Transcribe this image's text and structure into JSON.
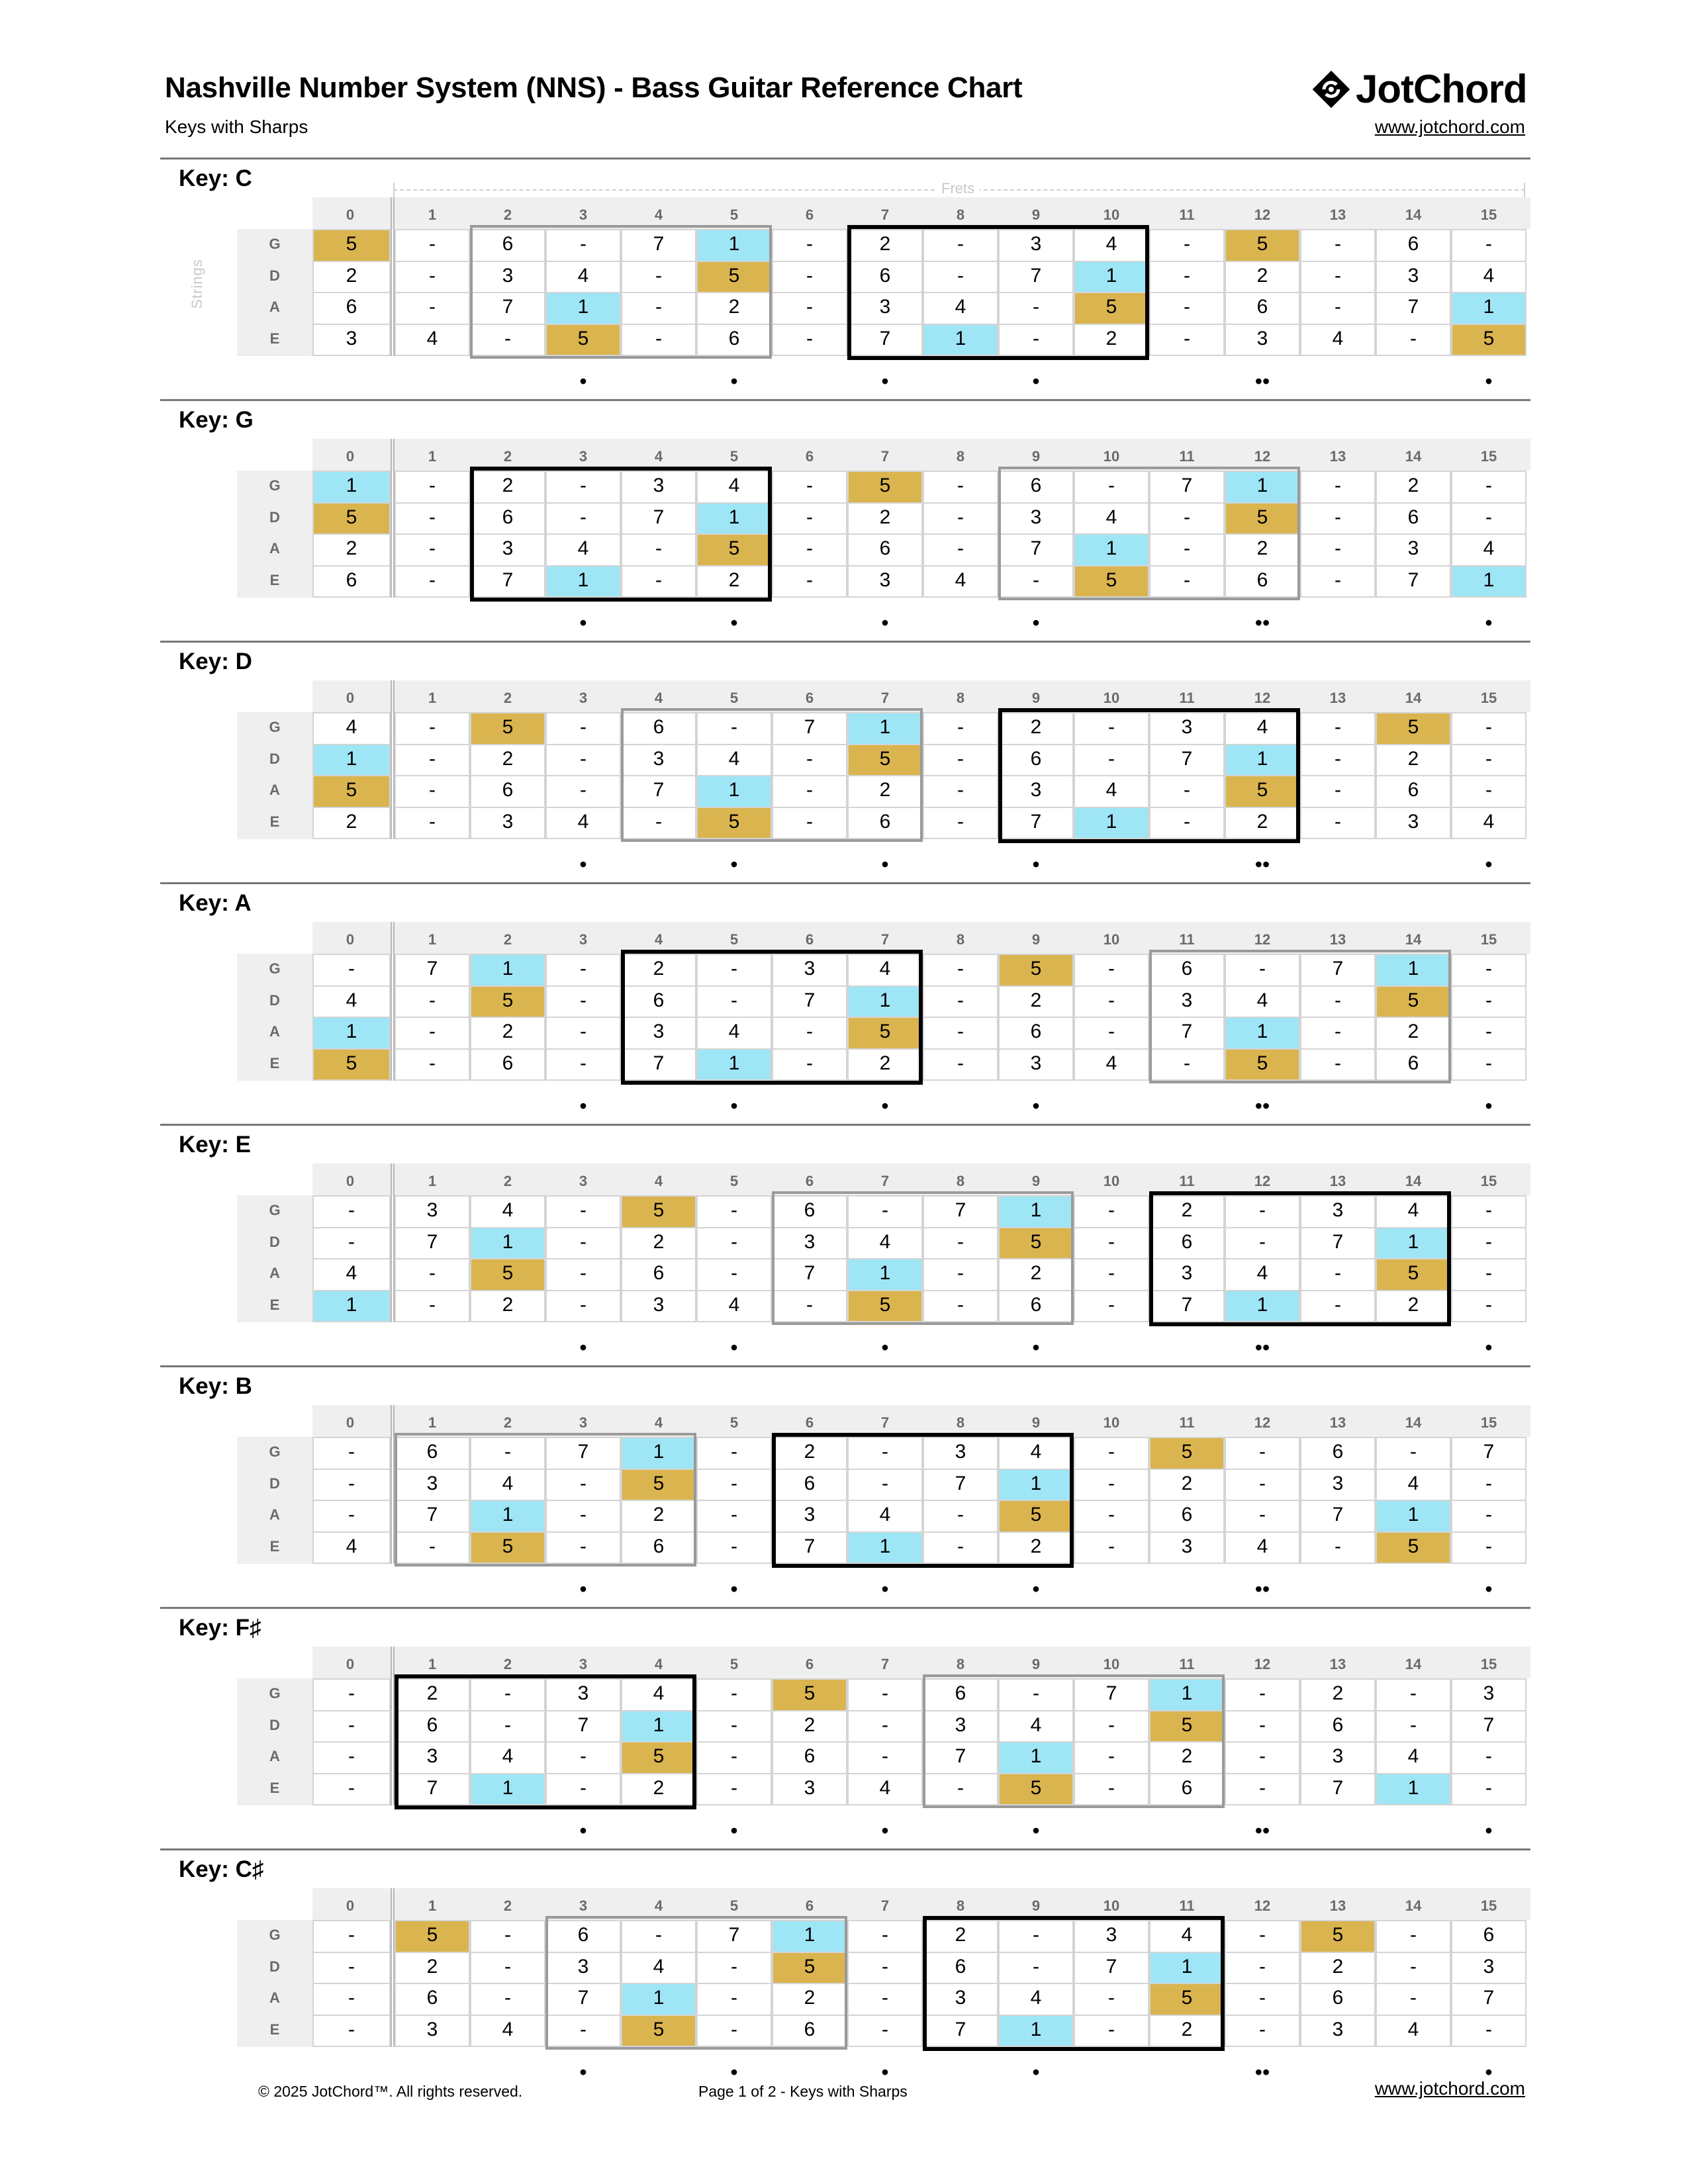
{
  "header": {
    "title": "Nashville Number System (NNS) - Bass Guitar Reference Chart",
    "subtitle": "Keys with Sharps",
    "logo_text": "JotChord",
    "site_link": "www.jotchord.com"
  },
  "axis_labels": {
    "frets": "Frets",
    "strings": "Strings"
  },
  "frets": [
    "0",
    "1",
    "2",
    "3",
    "4",
    "5",
    "6",
    "7",
    "8",
    "9",
    "10",
    "11",
    "12",
    "13",
    "14",
    "15"
  ],
  "strings": [
    "G",
    "D",
    "A",
    "E"
  ],
  "fret_markers": {
    "3": "•",
    "5": "•",
    "7": "•",
    "9": "•",
    "12": "••",
    "15": "•"
  },
  "colors": {
    "root_1": "#9ee6f6",
    "fifth_5": "#dab44e",
    "header_bg": "#efefef",
    "primary_box": "#000000",
    "secondary_box": "#9a9a9a"
  },
  "keys": [
    {
      "label": "Key:",
      "name": "C",
      "rows": [
        [
          "5",
          "-",
          "6",
          "-",
          "7",
          "1",
          "-",
          "2",
          "-",
          "3",
          "4",
          "-",
          "5",
          "-",
          "6",
          "-"
        ],
        [
          "2",
          "-",
          "3",
          "4",
          "-",
          "5",
          "-",
          "6",
          "-",
          "7",
          "1",
          "-",
          "2",
          "-",
          "3",
          "4"
        ],
        [
          "6",
          "-",
          "7",
          "1",
          "-",
          "2",
          "-",
          "3",
          "4",
          "-",
          "5",
          "-",
          "6",
          "-",
          "7",
          "1"
        ],
        [
          "3",
          "4",
          "-",
          "5",
          "-",
          "6",
          "-",
          "7",
          "1",
          "-",
          "2",
          "-",
          "3",
          "4",
          "-",
          "5"
        ]
      ],
      "primary_box": [
        7,
        10
      ],
      "secondary_box": [
        2,
        5
      ]
    },
    {
      "label": "Key:",
      "name": "G",
      "rows": [
        [
          "1",
          "-",
          "2",
          "-",
          "3",
          "4",
          "-",
          "5",
          "-",
          "6",
          "-",
          "7",
          "1",
          "-",
          "2",
          "-"
        ],
        [
          "5",
          "-",
          "6",
          "-",
          "7",
          "1",
          "-",
          "2",
          "-",
          "3",
          "4",
          "-",
          "5",
          "-",
          "6",
          "-"
        ],
        [
          "2",
          "-",
          "3",
          "4",
          "-",
          "5",
          "-",
          "6",
          "-",
          "7",
          "1",
          "-",
          "2",
          "-",
          "3",
          "4"
        ],
        [
          "6",
          "-",
          "7",
          "1",
          "-",
          "2",
          "-",
          "3",
          "4",
          "-",
          "5",
          "-",
          "6",
          "-",
          "7",
          "1"
        ]
      ],
      "primary_box": [
        2,
        5
      ],
      "secondary_box": [
        9,
        12
      ]
    },
    {
      "label": "Key:",
      "name": "D",
      "rows": [
        [
          "4",
          "-",
          "5",
          "-",
          "6",
          "-",
          "7",
          "1",
          "-",
          "2",
          "-",
          "3",
          "4",
          "-",
          "5",
          "-"
        ],
        [
          "1",
          "-",
          "2",
          "-",
          "3",
          "4",
          "-",
          "5",
          "-",
          "6",
          "-",
          "7",
          "1",
          "-",
          "2",
          "-"
        ],
        [
          "5",
          "-",
          "6",
          "-",
          "7",
          "1",
          "-",
          "2",
          "-",
          "3",
          "4",
          "-",
          "5",
          "-",
          "6",
          "-"
        ],
        [
          "2",
          "-",
          "3",
          "4",
          "-",
          "5",
          "-",
          "6",
          "-",
          "7",
          "1",
          "-",
          "2",
          "-",
          "3",
          "4"
        ]
      ],
      "primary_box": [
        9,
        12
      ],
      "secondary_box": [
        4,
        7
      ]
    },
    {
      "label": "Key:",
      "name": "A",
      "rows": [
        [
          "-",
          "7",
          "1",
          "-",
          "2",
          "-",
          "3",
          "4",
          "-",
          "5",
          "-",
          "6",
          "-",
          "7",
          "1",
          "-"
        ],
        [
          "4",
          "-",
          "5",
          "-",
          "6",
          "-",
          "7",
          "1",
          "-",
          "2",
          "-",
          "3",
          "4",
          "-",
          "5",
          "-"
        ],
        [
          "1",
          "-",
          "2",
          "-",
          "3",
          "4",
          "-",
          "5",
          "-",
          "6",
          "-",
          "7",
          "1",
          "-",
          "2",
          "-"
        ],
        [
          "5",
          "-",
          "6",
          "-",
          "7",
          "1",
          "-",
          "2",
          "-",
          "3",
          "4",
          "-",
          "5",
          "-",
          "6",
          "-"
        ]
      ],
      "primary_box": [
        4,
        7
      ],
      "secondary_box": [
        11,
        14
      ]
    },
    {
      "label": "Key:",
      "name": "E",
      "rows": [
        [
          "-",
          "3",
          "4",
          "-",
          "5",
          "-",
          "6",
          "-",
          "7",
          "1",
          "-",
          "2",
          "-",
          "3",
          "4",
          "-"
        ],
        [
          "-",
          "7",
          "1",
          "-",
          "2",
          "-",
          "3",
          "4",
          "-",
          "5",
          "-",
          "6",
          "-",
          "7",
          "1",
          "-"
        ],
        [
          "4",
          "-",
          "5",
          "-",
          "6",
          "-",
          "7",
          "1",
          "-",
          "2",
          "-",
          "3",
          "4",
          "-",
          "5",
          "-"
        ],
        [
          "1",
          "-",
          "2",
          "-",
          "3",
          "4",
          "-",
          "5",
          "-",
          "6",
          "-",
          "7",
          "1",
          "-",
          "2",
          "-"
        ]
      ],
      "primary_box": [
        11,
        14
      ],
      "secondary_box": [
        6,
        9
      ]
    },
    {
      "label": "Key:",
      "name": "B",
      "rows": [
        [
          "-",
          "6",
          "-",
          "7",
          "1",
          "-",
          "2",
          "-",
          "3",
          "4",
          "-",
          "5",
          "-",
          "6",
          "-",
          "7"
        ],
        [
          "-",
          "3",
          "4",
          "-",
          "5",
          "-",
          "6",
          "-",
          "7",
          "1",
          "-",
          "2",
          "-",
          "3",
          "4",
          "-"
        ],
        [
          "-",
          "7",
          "1",
          "-",
          "2",
          "-",
          "3",
          "4",
          "-",
          "5",
          "-",
          "6",
          "-",
          "7",
          "1",
          "-"
        ],
        [
          "4",
          "-",
          "5",
          "-",
          "6",
          "-",
          "7",
          "1",
          "-",
          "2",
          "-",
          "3",
          "4",
          "-",
          "5",
          "-"
        ]
      ],
      "primary_box": [
        6,
        9
      ],
      "secondary_box": [
        1,
        4
      ]
    },
    {
      "label": "Key:",
      "name": "F♯",
      "rows": [
        [
          "-",
          "2",
          "-",
          "3",
          "4",
          "-",
          "5",
          "-",
          "6",
          "-",
          "7",
          "1",
          "-",
          "2",
          "-",
          "3"
        ],
        [
          "-",
          "6",
          "-",
          "7",
          "1",
          "-",
          "2",
          "-",
          "3",
          "4",
          "-",
          "5",
          "-",
          "6",
          "-",
          "7"
        ],
        [
          "-",
          "3",
          "4",
          "-",
          "5",
          "-",
          "6",
          "-",
          "7",
          "1",
          "-",
          "2",
          "-",
          "3",
          "4",
          "-"
        ],
        [
          "-",
          "7",
          "1",
          "-",
          "2",
          "-",
          "3",
          "4",
          "-",
          "5",
          "-",
          "6",
          "-",
          "7",
          "1",
          "-"
        ]
      ],
      "primary_box": [
        1,
        4
      ],
      "secondary_box": [
        8,
        11
      ]
    },
    {
      "label": "Key:",
      "name": "C♯",
      "rows": [
        [
          "-",
          "5",
          "-",
          "6",
          "-",
          "7",
          "1",
          "-",
          "2",
          "-",
          "3",
          "4",
          "-",
          "5",
          "-",
          "6"
        ],
        [
          "-",
          "2",
          "-",
          "3",
          "4",
          "-",
          "5",
          "-",
          "6",
          "-",
          "7",
          "1",
          "-",
          "2",
          "-",
          "3"
        ],
        [
          "-",
          "6",
          "-",
          "7",
          "1",
          "-",
          "2",
          "-",
          "3",
          "4",
          "-",
          "5",
          "-",
          "6",
          "-",
          "7"
        ],
        [
          "-",
          "3",
          "4",
          "-",
          "5",
          "-",
          "6",
          "-",
          "7",
          "1",
          "-",
          "2",
          "-",
          "3",
          "4",
          "-"
        ]
      ],
      "primary_box": [
        8,
        11
      ],
      "secondary_box": [
        3,
        6
      ]
    }
  ],
  "footer": {
    "copyright": "© 2025 JotChord™. All rights reserved.",
    "page_info": "Page 1 of 2 - Keys with Sharps",
    "site_link": "www.jotchord.com"
  }
}
